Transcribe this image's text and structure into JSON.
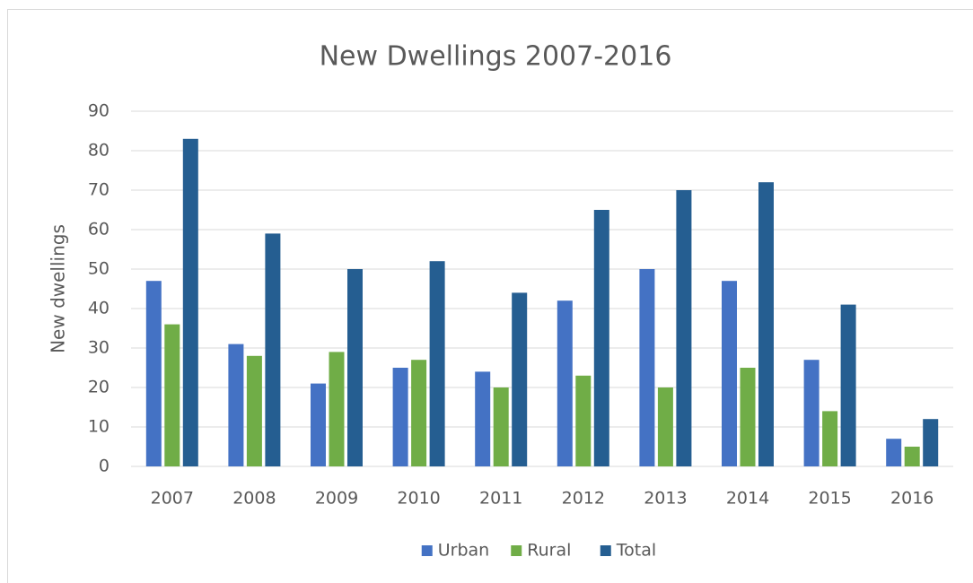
{
  "chart_data": {
    "type": "bar",
    "title": "New Dwellings 2007-2016",
    "y_label": "New dwellings",
    "categories": [
      "2007",
      "2008",
      "2009",
      "2010",
      "2011",
      "2012",
      "2013",
      "2014",
      "2015",
      "2016"
    ],
    "series": [
      {
        "name": "Urban",
        "color": "#4472c4",
        "values": [
          47,
          31,
          21,
          25,
          24,
          42,
          50,
          47,
          27,
          7
        ]
      },
      {
        "name": "Rural",
        "color": "#70ad47",
        "values": [
          36,
          28,
          29,
          27,
          20,
          23,
          20,
          25,
          14,
          5
        ]
      },
      {
        "name": "Total",
        "color": "#255e91",
        "values": [
          83,
          59,
          50,
          52,
          44,
          65,
          70,
          72,
          41,
          12
        ]
      }
    ],
    "ylim": [
      0,
      90
    ],
    "yticks": [
      0,
      10,
      20,
      30,
      40,
      50,
      60,
      70,
      80,
      90
    ],
    "grid": true,
    "legend": "bottom"
  }
}
